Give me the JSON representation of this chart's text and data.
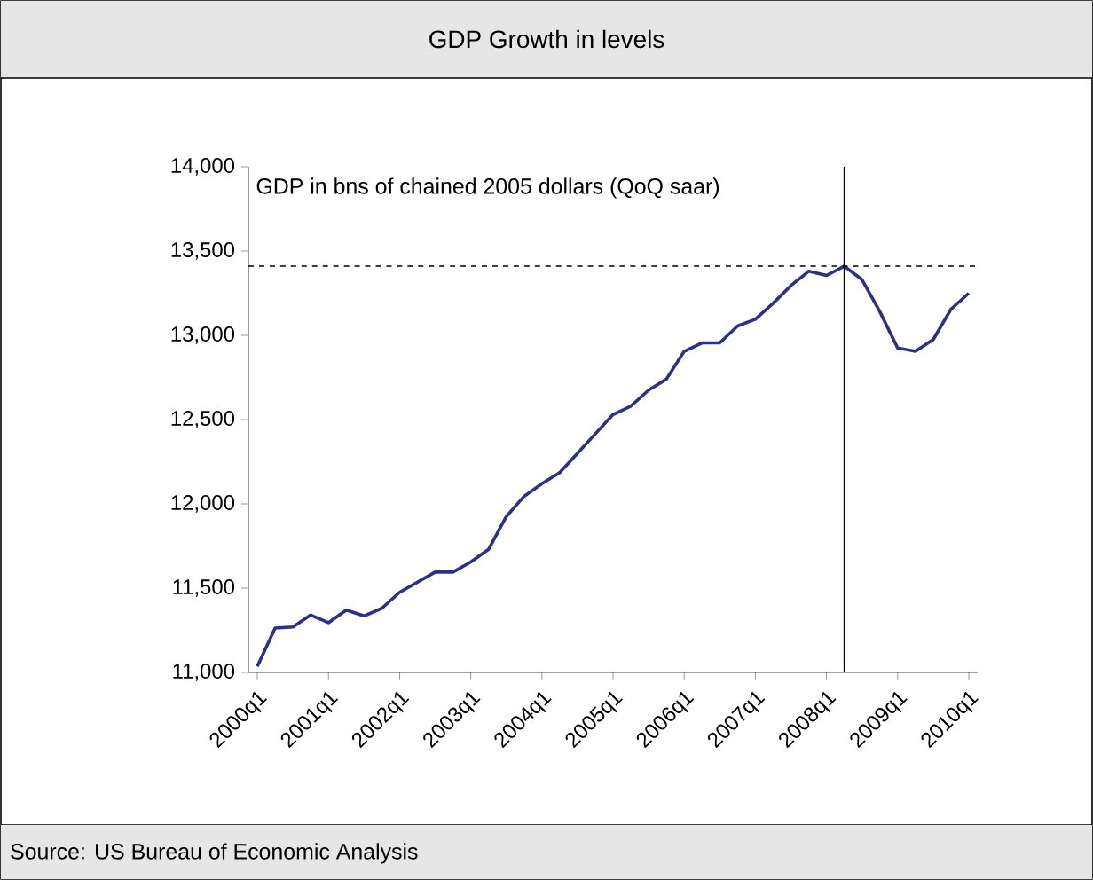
{
  "chart_data": {
    "type": "line",
    "title": "GDP Growth in levels",
    "annotations": [
      "GDP in bns of chained 2005 dollars (QoQ saar)",
      "Source: US Bureau of Economic Analysis"
    ],
    "categories": [
      "2000q1",
      null,
      null,
      null,
      "2001q1",
      null,
      null,
      null,
      "2002q1",
      null,
      null,
      null,
      "2003q1",
      null,
      null,
      null,
      "2004q1",
      null,
      null,
      null,
      "2005q1",
      null,
      null,
      null,
      "2006q1",
      null,
      null,
      null,
      "2007q1",
      null,
      null,
      null,
      "2008q1",
      null,
      null,
      null,
      "2009q1",
      null,
      null,
      null,
      "2010q1"
    ],
    "series": [
      {
        "color": "#2e3182",
        "values": [
          11035,
          11263,
          11270,
          11340,
          11295,
          11370,
          11335,
          11380,
          11475,
          11535,
          11595,
          11595,
          11655,
          11730,
          11925,
          12045,
          12120,
          12185,
          12300,
          12415,
          12530,
          12580,
          12675,
          12740,
          12905,
          12955,
          12955,
          13055,
          13095,
          13190,
          13295,
          13380,
          13355,
          13410,
          13330,
          13140,
          12925,
          12905,
          12975,
          13155,
          13250
        ]
      }
    ],
    "ylim": [
      11000,
      14000
    ],
    "yticks": [
      {
        "value": 11000,
        "label": "11,000"
      },
      {
        "value": 11500,
        "label": "11,500"
      },
      {
        "value": 12000,
        "label": "12,000"
      },
      {
        "value": 12500,
        "label": "12,500"
      },
      {
        "value": 13000,
        "label": "13,000"
      },
      {
        "value": 13500,
        "label": "13,500"
      },
      {
        "value": 14000,
        "label": "14,000"
      }
    ],
    "ref_lines": [
      {
        "axis": "y",
        "value": 13410,
        "line_style": "dashed",
        "color": "#000000"
      }
    ],
    "line_style": "solid",
    "marker": "none"
  }
}
